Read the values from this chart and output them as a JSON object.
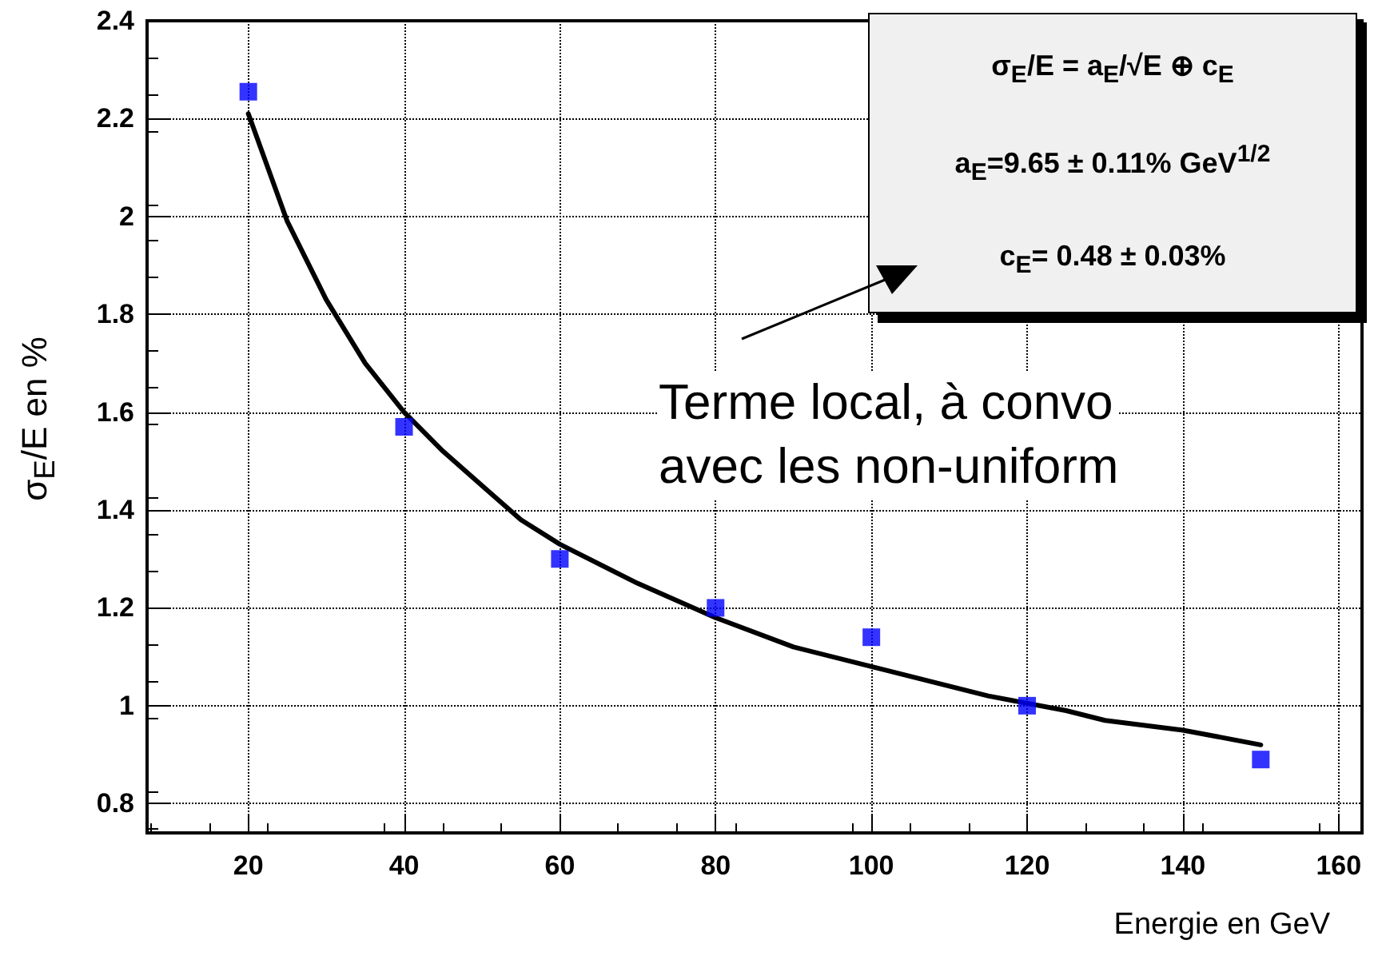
{
  "chart_data": {
    "type": "scatter",
    "xlabel": "Energie en GeV",
    "ylabel": "σ$_{E}$/E en %",
    "xlim": [
      7,
      163
    ],
    "xticks": [
      20,
      40,
      60,
      80,
      100,
      120,
      140,
      160
    ],
    "ylim": [
      0.74,
      2.4
    ],
    "yticks": [
      0.8,
      1,
      1.2,
      1.4,
      1.6,
      1.8,
      2,
      2.2,
      2.4
    ],
    "grid": true,
    "series": [
      {
        "type": "scatter",
        "color": "#0000ff",
        "marker": "square",
        "x": [
          20,
          40,
          60,
          80,
          100,
          120,
          150
        ],
        "values": [
          2.255,
          1.57,
          1.3,
          1.2,
          1.14,
          1.0,
          0.89
        ]
      },
      {
        "type": "line",
        "color": "#000000",
        "marker": "none",
        "line_style": "solid",
        "x": [
          20,
          25,
          30,
          35,
          40,
          45,
          50,
          55,
          60,
          70,
          80,
          90,
          100,
          110,
          115,
          125,
          130,
          140,
          150
        ],
        "values": [
          2.21,
          1.99,
          1.83,
          1.7,
          1.6,
          1.52,
          1.45,
          1.38,
          1.33,
          1.25,
          1.18,
          1.12,
          1.08,
          1.04,
          1.02,
          0.99,
          0.97,
          0.95,
          0.92
        ]
      }
    ],
    "annotations": [
      "σ$_{E}$/E = a$_{E}$/√E ⊕ c$_{E}$",
      "a$_{E}$=9.65 ± 0.11% GeV$^{1/2}$",
      "c$_{E}$= 0.48 ± 0.03%",
      "Terme local, à convo",
      "avec les non-uniform"
    ]
  }
}
